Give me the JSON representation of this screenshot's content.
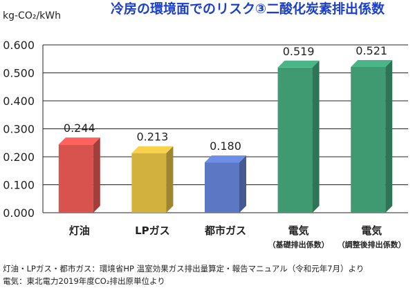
{
  "chart_data": {
    "type": "bar",
    "title": "冷房の環境面でのリスク③二酸化炭素排出係数",
    "ylabel": "kg-CO₂/kWh",
    "xlabel": "",
    "ylim": [
      0,
      0.6
    ],
    "yticks": [
      "0.000",
      "0.100",
      "0.200",
      "0.300",
      "0.400",
      "0.500",
      "0.600"
    ],
    "grid": true,
    "categories": [
      {
        "label": "灯油",
        "sub": ""
      },
      {
        "label": "LPガス",
        "sub": ""
      },
      {
        "label": "都市ガス",
        "sub": ""
      },
      {
        "label": "電気",
        "sub": "（基礎排出係数）"
      },
      {
        "label": "電気",
        "sub": "（調整後排出係数）"
      }
    ],
    "values": [
      0.244,
      0.213,
      0.18,
      0.519,
      0.521
    ],
    "value_labels": [
      "0.244",
      "0.213",
      "0.180",
      "0.519",
      "0.521"
    ],
    "colors": [
      "#d9534e",
      "#d3b13f",
      "#5c78c4",
      "#3f9a72",
      "#3f9a72"
    ]
  },
  "footnotes": [
    "灯油・LPガス・都市ガス：環境省HP 温室効果ガス排出量算定・報告マニュアル（令和元年7月）より",
    "電気：東北電力2019年度CO₂排出原単位より"
  ]
}
